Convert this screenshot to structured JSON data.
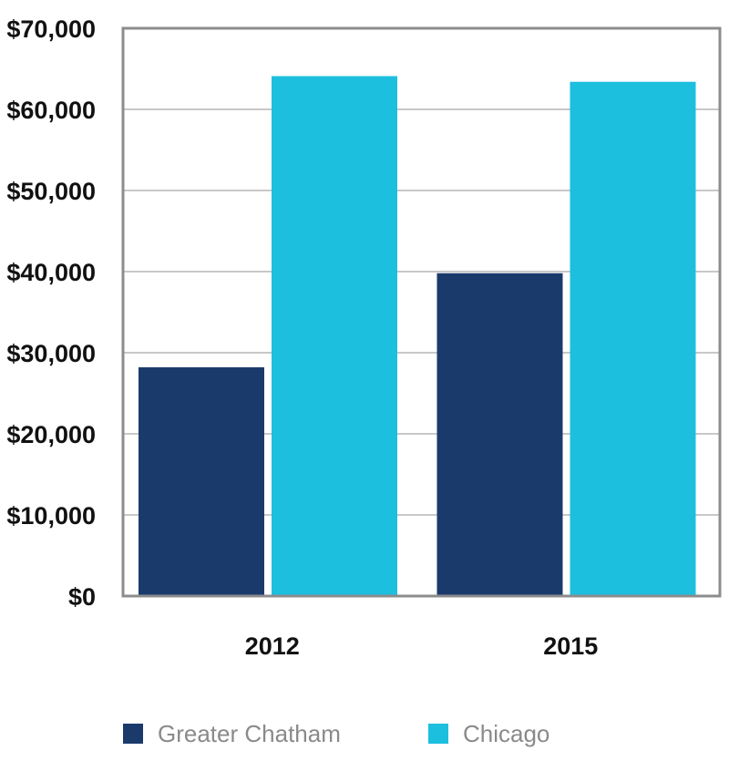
{
  "chart_data": {
    "type": "bar",
    "categories": [
      "2012",
      "2015"
    ],
    "series": [
      {
        "name": "Greater Chatham",
        "values": [
          28200,
          39800
        ],
        "color": "#1b3a6c"
      },
      {
        "name": "Chicago",
        "values": [
          64100,
          63400
        ],
        "color": "#1dbfdf"
      }
    ],
    "title": "",
    "xlabel": "",
    "ylabel": "",
    "ylim": [
      0,
      70000
    ],
    "yticks": [
      0,
      10000,
      20000,
      30000,
      40000,
      50000,
      60000,
      70000
    ],
    "ytick_labels": [
      "$0",
      "$10,000",
      "$20,000",
      "$30,000",
      "$40,000",
      "$50,000",
      "$60,000",
      "$70,000"
    ],
    "grid": true,
    "legend_position": "bottom"
  }
}
